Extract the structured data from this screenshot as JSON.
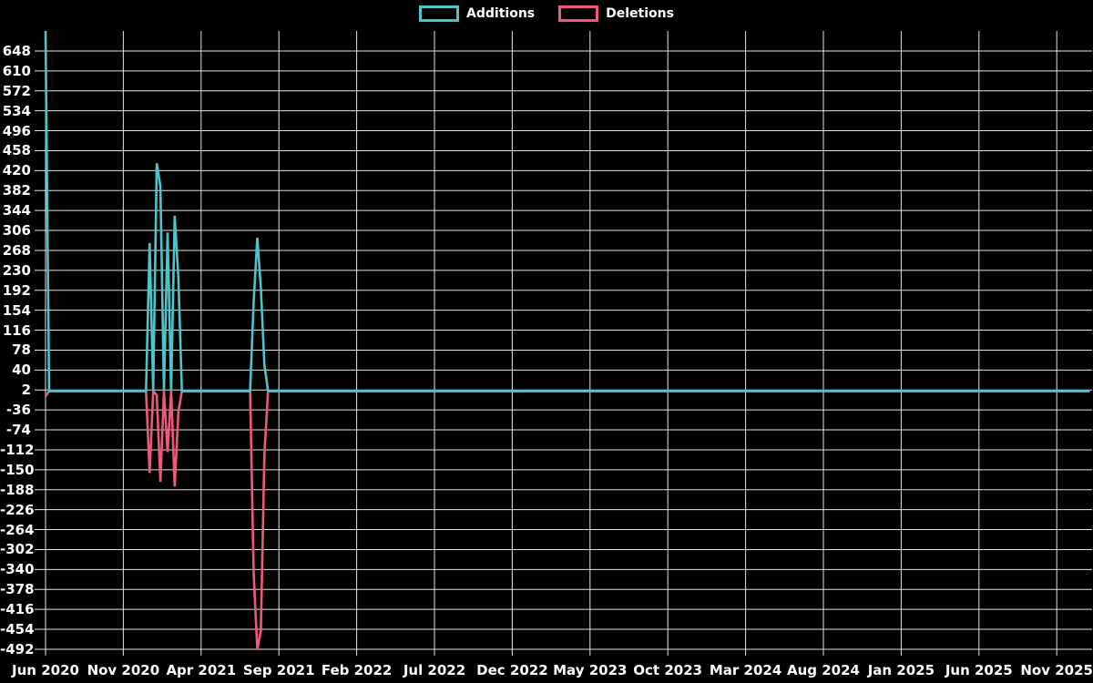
{
  "legend": {
    "items": [
      {
        "id": "additions",
        "label": "Additions",
        "color": "#4cc4c9"
      },
      {
        "id": "deletions",
        "label": "Deletions",
        "color": "#ef5879"
      }
    ]
  },
  "chart_data": {
    "type": "line",
    "title": "",
    "description": "Weekly code additions (positive, teal) and deletions (negative, pink); all unlisted weeks are 0 for both series",
    "x_axis": {
      "tick_labels": [
        "Jun 2020",
        "Nov 2020",
        "Apr 2021",
        "Sep 2021",
        "Feb 2022",
        "Jul 2022",
        "Dec 2022",
        "May 2023",
        "Oct 2023",
        "Mar 2024",
        "Aug 2024",
        "Jan 2025",
        "Jun 2025",
        "Nov 2025"
      ],
      "unit": "week",
      "weeks_total": 292,
      "weeks_per_label_step": 21.7
    },
    "y_axis": {
      "ticks": [
        648,
        610,
        572,
        534,
        496,
        458,
        420,
        382,
        344,
        306,
        268,
        230,
        192,
        154,
        116,
        78,
        40,
        2,
        -36,
        -74,
        -112,
        -150,
        -188,
        -226,
        -264,
        -302,
        -340,
        -378,
        -416,
        -454,
        -492
      ],
      "min": -492,
      "max": 686,
      "grid": true
    },
    "colors": {
      "background": "#000000",
      "grid": "#e6e6e6",
      "text": "#ffffff"
    },
    "series": [
      {
        "name": "Additions",
        "color": "#4cc4c9",
        "baseline": 0,
        "spikes": [
          {
            "week": 0,
            "value": 686
          },
          {
            "week": 29,
            "value": 282
          },
          {
            "week": 31,
            "value": 434
          },
          {
            "week": 32,
            "value": 390
          },
          {
            "week": 34,
            "value": 302
          },
          {
            "week": 36,
            "value": 334
          },
          {
            "week": 37,
            "value": 217
          },
          {
            "week": 58,
            "value": 170
          },
          {
            "week": 59,
            "value": 292
          },
          {
            "week": 60,
            "value": 196
          },
          {
            "week": 61,
            "value": 49
          }
        ]
      },
      {
        "name": "Deletions",
        "color": "#ef5879",
        "baseline": 0,
        "spikes": [
          {
            "week": 0,
            "value": -10
          },
          {
            "week": 29,
            "value": -156
          },
          {
            "week": 31,
            "value": -8
          },
          {
            "week": 32,
            "value": -173
          },
          {
            "week": 34,
            "value": -116
          },
          {
            "week": 36,
            "value": -182
          },
          {
            "week": 37,
            "value": -40
          },
          {
            "week": 58,
            "value": -347
          },
          {
            "week": 59,
            "value": -492
          },
          {
            "week": 60,
            "value": -457
          },
          {
            "week": 61,
            "value": -120
          }
        ]
      }
    ],
    "legend_position": "top-center"
  }
}
